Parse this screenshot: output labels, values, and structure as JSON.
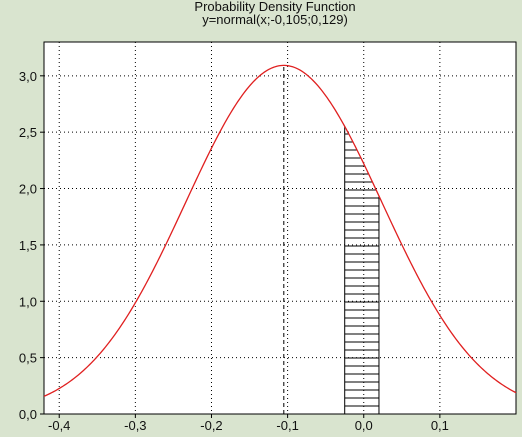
{
  "chart_data": {
    "type": "line",
    "title": "Probability Density Function",
    "subtitle": "y=normal(x;-0,105;0,129)",
    "distribution": {
      "mean": -0.105,
      "sd": 0.129
    },
    "xlim": [
      -0.42,
      0.2
    ],
    "ylim": [
      0,
      3.3
    ],
    "x_ticks": [
      {
        "value": -0.4,
        "label": "-0,4"
      },
      {
        "value": -0.3,
        "label": "-0,3"
      },
      {
        "value": -0.2,
        "label": "-0,2"
      },
      {
        "value": -0.1,
        "label": "-0,1"
      },
      {
        "value": 0.0,
        "label": "0,0"
      },
      {
        "value": 0.1,
        "label": "0,1"
      }
    ],
    "y_ticks": [
      {
        "value": 0.0,
        "label": "0,0"
      },
      {
        "value": 0.5,
        "label": "0,5"
      },
      {
        "value": 1.0,
        "label": "1,0"
      },
      {
        "value": 1.5,
        "label": "1,5"
      },
      {
        "value": 2.0,
        "label": "2,0"
      },
      {
        "value": 2.5,
        "label": "2,5"
      },
      {
        "value": 3.0,
        "label": "3,0"
      }
    ],
    "series": [
      {
        "color": "#e02020"
      }
    ],
    "mean_line": {
      "x": -0.105,
      "style": "dashed",
      "color": "#000000"
    },
    "shaded_region": {
      "x_from": -0.025,
      "x_to": 0.02,
      "pattern": "horizontal-lines"
    },
    "grid": "dotted",
    "background": "#ffffff",
    "frame": "#d9e4cf"
  }
}
